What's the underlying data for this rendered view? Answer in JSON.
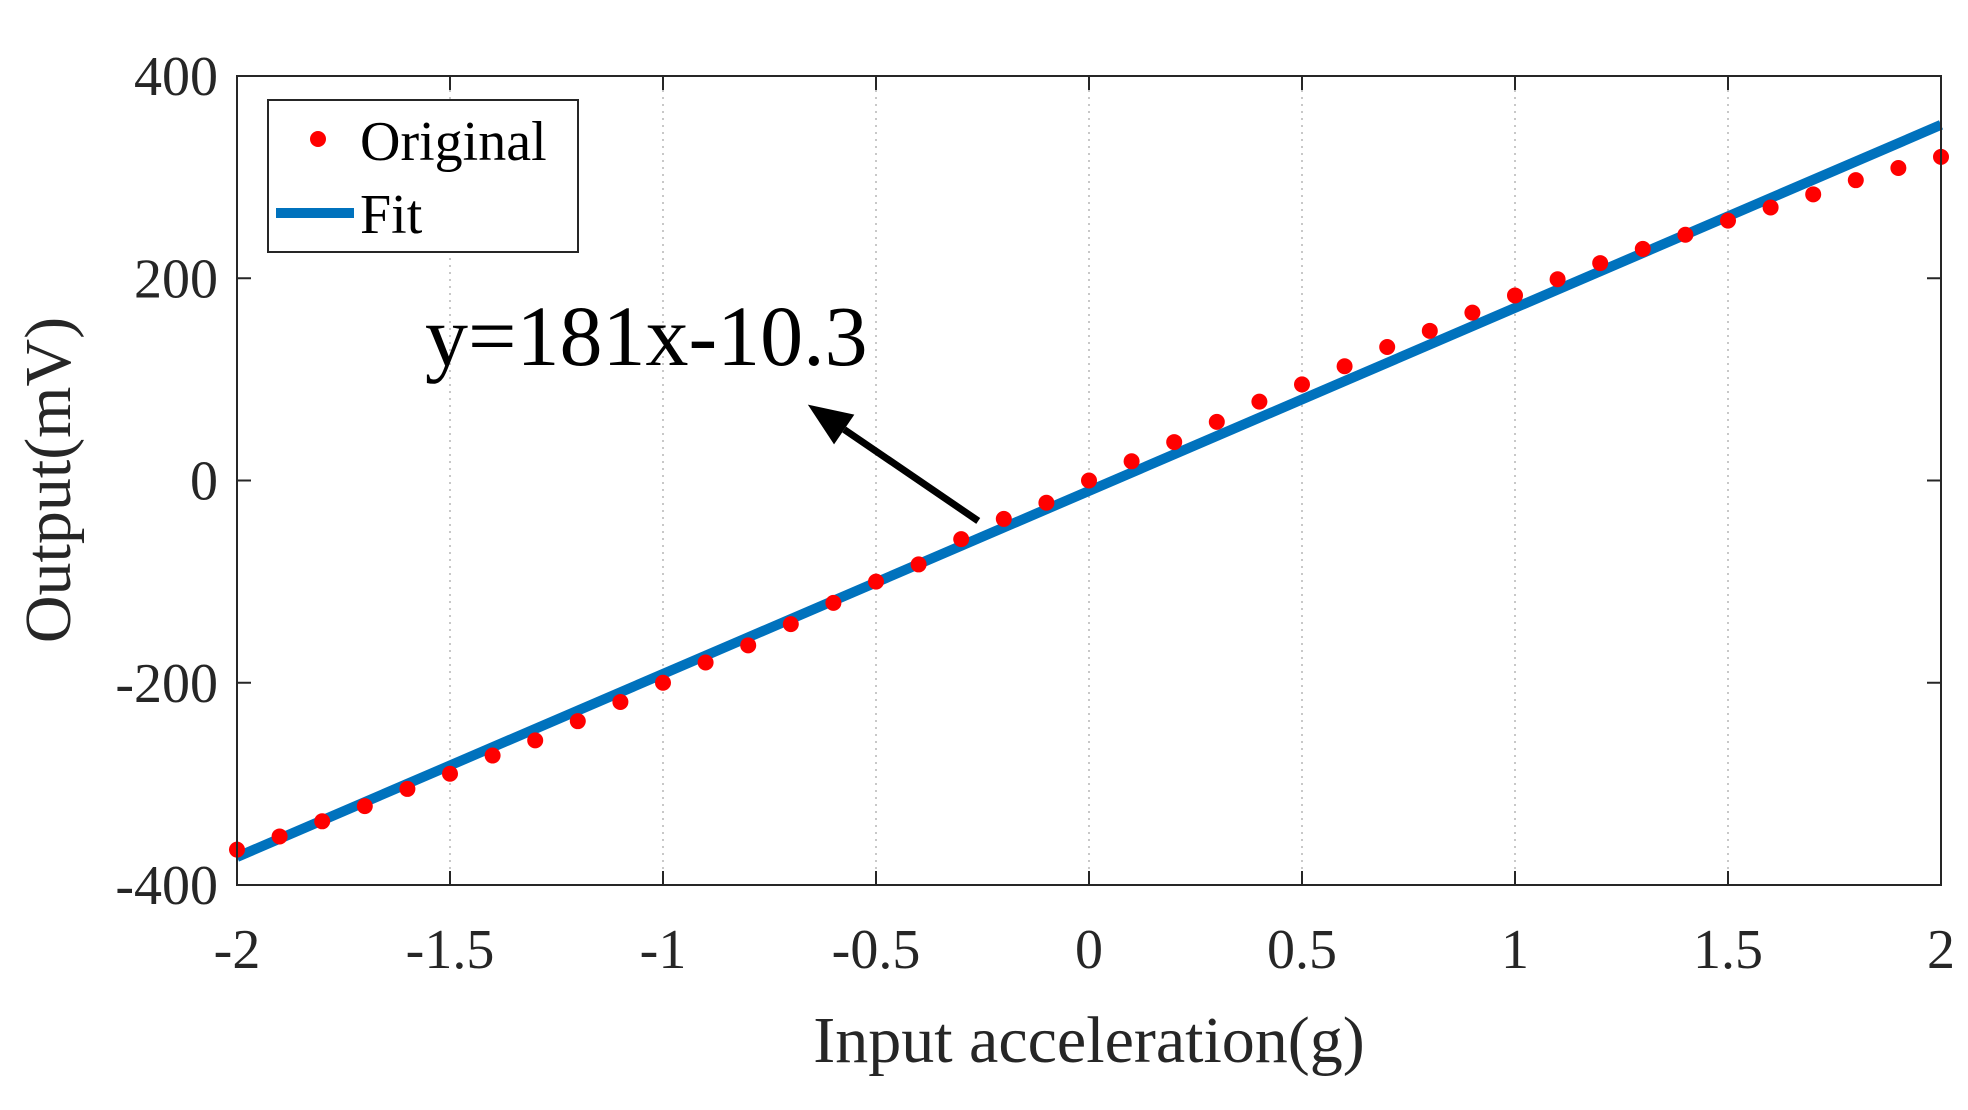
{
  "chart_data": {
    "type": "scatter",
    "title": "",
    "xlabel": "Input acceleration(g)",
    "ylabel": "Output(mV)",
    "xlim": [
      -2,
      2
    ],
    "ylim": [
      -400,
      400
    ],
    "xticks": [
      -2,
      -1.5,
      -1,
      -0.5,
      0,
      0.5,
      1,
      1.5,
      2
    ],
    "xtick_labels": [
      "-2",
      "-1.5",
      "-1",
      "-0.5",
      "0",
      "0.5",
      "1",
      "1.5",
      "2"
    ],
    "yticks": [
      -400,
      -200,
      0,
      200,
      400
    ],
    "ytick_labels": [
      "-400",
      "-200",
      "0",
      "200",
      "400"
    ],
    "grid": {
      "x": true,
      "y": false,
      "style": "dotted"
    },
    "legend_position": "top-left",
    "series": [
      {
        "name": "Original",
        "kind": "markers",
        "color": "#ff0000",
        "x": [
          -2,
          -1.9,
          -1.8,
          -1.7,
          -1.6,
          -1.5,
          -1.4,
          -1.3,
          -1.2,
          -1.1,
          -1,
          -0.9,
          -0.8,
          -0.7,
          -0.6,
          -0.5,
          -0.4,
          -0.3,
          -0.2,
          -0.1,
          0,
          0.1,
          0.2,
          0.3,
          0.4,
          0.5,
          0.6,
          0.7,
          0.8,
          0.9,
          1,
          1.1,
          1.2,
          1.3,
          1.4,
          1.5,
          1.6,
          1.7,
          1.8,
          1.9,
          2
        ],
        "values": [
          -365,
          -352,
          -337,
          -322,
          -305,
          -290,
          -272,
          -257,
          -238,
          -219,
          -200,
          -180,
          -163,
          -142,
          -121,
          -100,
          -83,
          -58,
          -38,
          -22,
          0,
          19,
          38,
          58,
          78,
          95,
          113,
          132,
          148,
          166,
          183,
          199,
          215,
          229,
          243,
          257,
          270,
          283,
          297,
          309,
          320
        ]
      },
      {
        "name": "Fit",
        "kind": "line",
        "color": "#0072bd",
        "x": [
          -2,
          2
        ],
        "values": [
          -372.3,
          351.7
        ]
      }
    ],
    "annotations": [
      {
        "text": "y=181x-10.3",
        "arrow_from": {
          "x": -0.26,
          "y": -40
        },
        "arrow_to": {
          "x": -0.66,
          "y": 75
        }
      }
    ]
  }
}
